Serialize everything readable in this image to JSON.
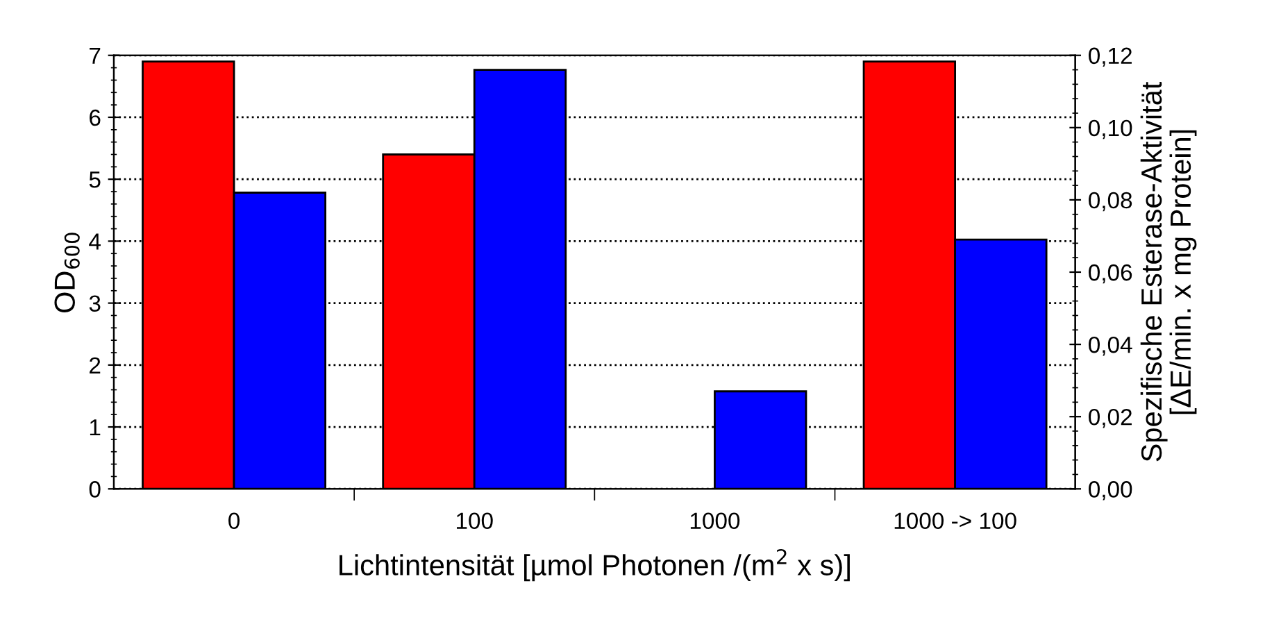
{
  "chart_data": {
    "type": "bar",
    "xlabel": "Lichtintensität [µmol Photonen /(m$^{2}$ x s)]",
    "ylabel": "OD$_{600}$",
    "y2label": "Spezifische Esterase-Aktivität\n[ΔE/min. x mg Protein]",
    "categories": [
      "0",
      "100",
      "1000",
      "1000 -> 100"
    ],
    "series": [
      {
        "color": "#ff0000",
        "values": [
          6.9,
          5.4,
          0,
          6.9
        ]
      },
      {
        "color": "#0000ff",
        "axis": "y2",
        "values": [
          0.082,
          0.116,
          0.027,
          0.069
        ]
      }
    ],
    "ylim": [
      0,
      7
    ],
    "yticks": [
      0,
      1,
      2,
      3,
      4,
      5,
      6,
      7
    ],
    "y2lim": [
      0,
      0.12
    ],
    "y2ticks": [
      {
        "value": 0,
        "label": "0,00"
      },
      {
        "value": 0.02,
        "label": "0,02"
      },
      {
        "value": 0.04,
        "label": "0,04"
      },
      {
        "value": 0.06,
        "label": "0,06"
      },
      {
        "value": 0.08,
        "label": "0,08"
      },
      {
        "value": 0.1,
        "label": "0,10"
      },
      {
        "value": 0.12,
        "label": "0,12"
      }
    ],
    "grid": "y",
    "line_style": "dotted"
  }
}
